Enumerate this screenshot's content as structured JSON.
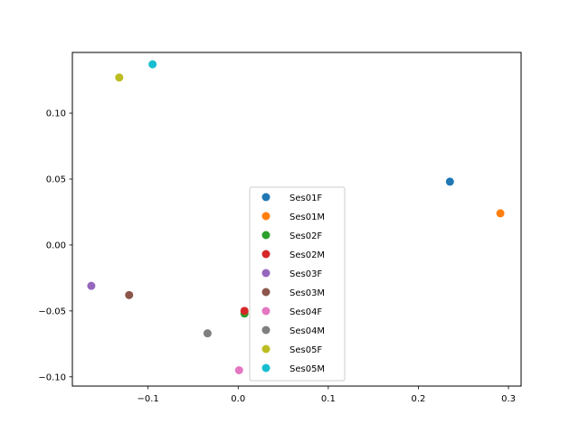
{
  "chart_data": {
    "type": "scatter",
    "title": "",
    "xlabel": "",
    "ylabel": "",
    "xlim": [
      -0.184,
      0.314
    ],
    "ylim": [
      -0.107,
      0.146
    ],
    "xticks": [
      -0.1,
      0.0,
      0.1,
      0.2,
      0.3
    ],
    "xtick_labels": [
      "−0.1",
      "0.0",
      "0.1",
      "0.2",
      "0.3"
    ],
    "yticks": [
      -0.1,
      -0.05,
      0.0,
      0.05,
      0.1
    ],
    "ytick_labels": [
      "−0.10",
      "−0.05",
      "0.00",
      "0.05",
      "0.10"
    ],
    "grid": false,
    "legend_position": "center-bottom",
    "series": [
      {
        "name": "Ses01F",
        "color": "#1f77b4",
        "x": [
          0.235
        ],
        "y": [
          0.048
        ]
      },
      {
        "name": "Ses01M",
        "color": "#ff7f0e",
        "x": [
          0.291
        ],
        "y": [
          0.024
        ]
      },
      {
        "name": "Ses02F",
        "color": "#2ca02c",
        "x": [
          0.007
        ],
        "y": [
          -0.052
        ]
      },
      {
        "name": "Ses02M",
        "color": "#d62728",
        "x": [
          0.007
        ],
        "y": [
          -0.05
        ]
      },
      {
        "name": "Ses03F",
        "color": "#9467bd",
        "x": [
          -0.163
        ],
        "y": [
          -0.031
        ]
      },
      {
        "name": "Ses03M",
        "color": "#8c564b",
        "x": [
          -0.121
        ],
        "y": [
          -0.038
        ]
      },
      {
        "name": "Ses04F",
        "color": "#e377c2",
        "x": [
          0.001
        ],
        "y": [
          -0.095
        ]
      },
      {
        "name": "Ses04M",
        "color": "#7f7f7f",
        "x": [
          -0.034
        ],
        "y": [
          -0.067
        ]
      },
      {
        "name": "Ses05F",
        "color": "#bcbd22",
        "x": [
          -0.132
        ],
        "y": [
          0.127
        ]
      },
      {
        "name": "Ses05M",
        "color": "#17becf",
        "x": [
          -0.095
        ],
        "y": [
          0.137
        ]
      }
    ]
  }
}
